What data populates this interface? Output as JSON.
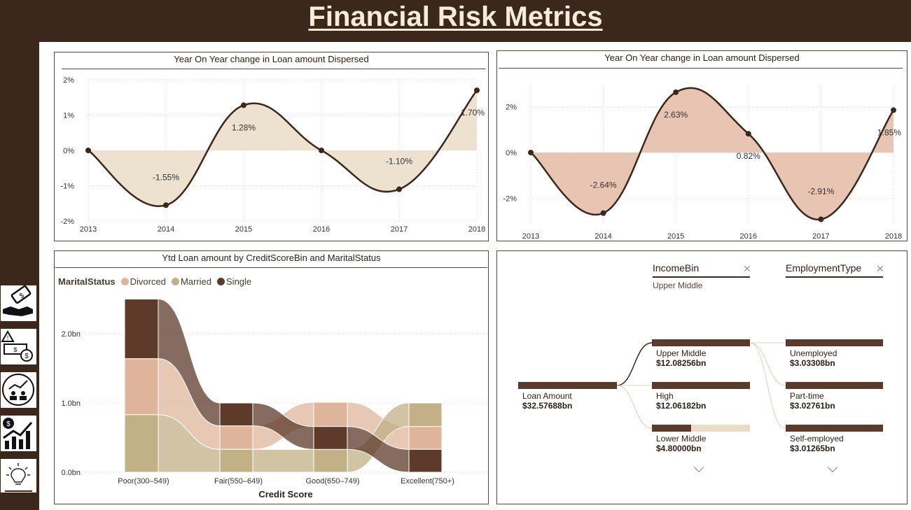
{
  "page": {
    "title": "Financial Risk Metrics"
  },
  "sidebar": {
    "icons": [
      "loan-hand-icon",
      "risk-alert-icon",
      "analytics-people-icon",
      "growth-chart-icon",
      "idea-bulb-icon"
    ]
  },
  "chart_data": [
    {
      "type": "area",
      "title": "Year On Year change in Loan amount Dispersed",
      "x": [
        "2013",
        "2014",
        "2015",
        "2016",
        "2017",
        "2018"
      ],
      "values": [
        0,
        -1.55,
        1.28,
        0,
        -1.1,
        1.7
      ],
      "labels": [
        "",
        "-1.55%",
        "1.28%",
        "",
        "-1.10%",
        "1.70%"
      ],
      "ylim": [
        -2,
        2
      ],
      "yticks": [
        "2%",
        "1%",
        "0%",
        "-1%",
        "-2%"
      ],
      "ytick_values": [
        2,
        1,
        0,
        -1,
        -2
      ],
      "fill": "#ece2cf",
      "line": "#3b271b",
      "grid": true
    },
    {
      "type": "area",
      "title": "Year On Year change in Loan amount Dispersed",
      "x": [
        "2013",
        "2014",
        "2015",
        "2016",
        "2017",
        "2018"
      ],
      "values": [
        0,
        -2.64,
        2.63,
        0.82,
        -2.91,
        1.85
      ],
      "labels": [
        "",
        "-2.64%",
        "2.63%",
        "0.82%",
        "-2.91%",
        "1.85%"
      ],
      "ylim": [
        -3.2,
        2.9
      ],
      "yticks": [
        "2%",
        "0%",
        "-2%"
      ],
      "ytick_values": [
        2,
        0,
        -2
      ],
      "fill": "#e8c4b3",
      "line": "#3b271b",
      "grid": true
    },
    {
      "type": "bar",
      "title": "Ytd Loan amount by CreditScoreBin and MaritalStatus",
      "categories": [
        "Poor(300–549)",
        "Fair(550–649)",
        "Good(650–749)",
        "Excellent(750+)"
      ],
      "xlabel": "Credit Score",
      "legend_title": "MaritalStatus",
      "yticks": [
        "2.0bn",
        "1.0bn",
        "0.0bn"
      ],
      "ytick_values": [
        2,
        1,
        0
      ],
      "ylim": [
        0,
        2.5
      ],
      "series": [
        {
          "name": "Divorced",
          "color": "#deb59b",
          "values": [
            0.81,
            0.34,
            0.35,
            0.33
          ]
        },
        {
          "name": "Married",
          "color": "#c2b086",
          "values": [
            0.83,
            0.33,
            0.33,
            0.34
          ]
        },
        {
          "name": "Single",
          "color": "#5e3a2b",
          "values": [
            0.86,
            0.33,
            0.33,
            0.33
          ]
        }
      ],
      "stack_order": [
        [
          "Married",
          "Divorced",
          "Single"
        ],
        [
          "Married",
          "Divorced",
          "Single"
        ],
        [
          "Married",
          "Single",
          "Divorced"
        ],
        [
          "Single",
          "Divorced",
          "Married"
        ]
      ]
    }
  ],
  "decomposition_tree": {
    "columns": [
      {
        "header": "IncomeBin",
        "selected": "Upper Middle"
      },
      {
        "header": "EmploymentType",
        "selected": ""
      }
    ],
    "root": {
      "label": "Loan Amount",
      "value": "$32.57688bn"
    },
    "income_nodes": [
      {
        "label": "Upper Middle",
        "value": "$12.08256bn",
        "fraction": 1.0
      },
      {
        "label": "High",
        "value": "$12.06182bn",
        "fraction": 1.0
      },
      {
        "label": "Lower Middle",
        "value": "$4.80000bn",
        "fraction": 0.4
      }
    ],
    "employment_nodes": [
      {
        "label": "Unemployed",
        "value": "$3.03308bn",
        "fraction": 1.0
      },
      {
        "label": "Part-time",
        "value": "$3.02761bn",
        "fraction": 1.0
      },
      {
        "label": "Self-employed",
        "value": "$3.01265bn",
        "fraction": 1.0
      }
    ],
    "close_icon": "close-icon",
    "more_icon": "chevron-down-icon"
  }
}
